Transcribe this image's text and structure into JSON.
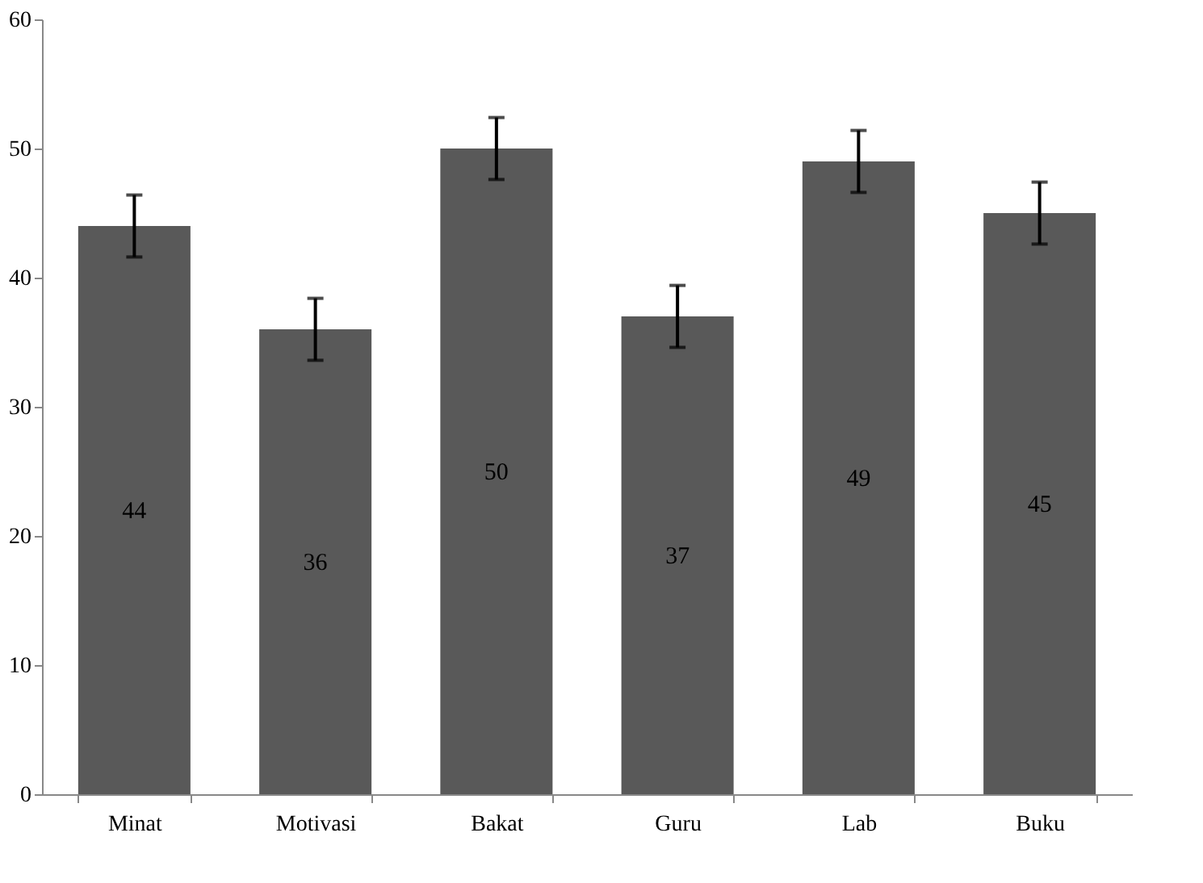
{
  "chart_data": {
    "type": "bar",
    "categories": [
      "Minat",
      "Motivasi",
      "Bakat",
      "Guru",
      "Lab",
      "Buku"
    ],
    "values": [
      44,
      36,
      50,
      37,
      49,
      45
    ],
    "errors": [
      2.4,
      2.4,
      2.4,
      2.4,
      2.4,
      2.4
    ],
    "color": "#595959",
    "ylim": [
      0,
      60
    ],
    "yticks": [
      0,
      10,
      20,
      30,
      40,
      50,
      60
    ],
    "grid": false,
    "data_labels": true
  }
}
